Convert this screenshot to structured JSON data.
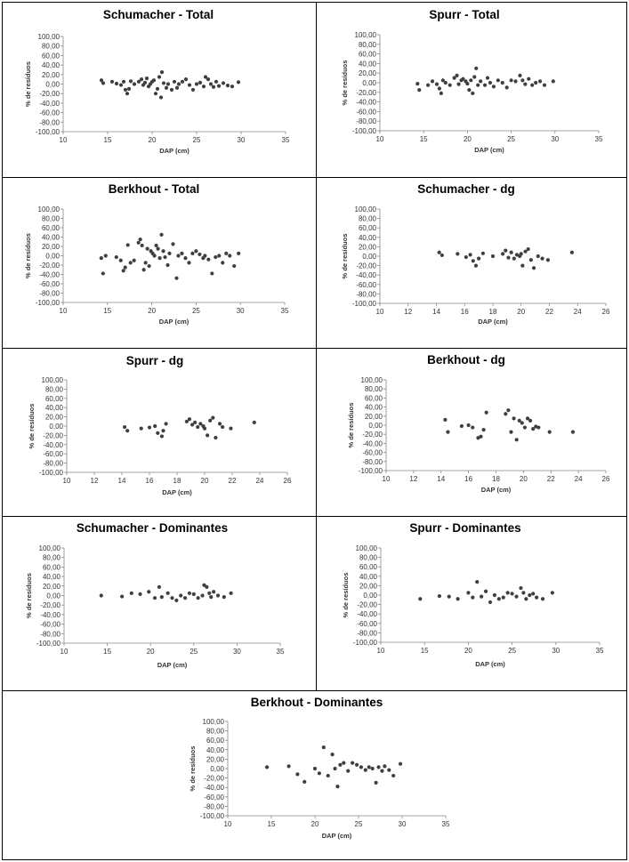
{
  "ylabel": "% de resíduos",
  "xlabel": "DAP (cm)",
  "y_ticks": [
    "100,00",
    "80,00",
    "60,00",
    "40,00",
    "20,00",
    "0,00",
    "-20,00",
    "-40,00",
    "-60,00",
    "-80,00",
    "-100,00"
  ],
  "chart_data": [
    {
      "type": "scatter",
      "title": "Schumacher - Total",
      "xlabel": "DAP (cm)",
      "ylabel": "% de resíduos",
      "xlim": [
        10,
        35
      ],
      "x_ticks": [
        10,
        15,
        20,
        25,
        30,
        35
      ],
      "ylim": [
        -100,
        100
      ],
      "points": [
        [
          14.3,
          8
        ],
        [
          14.5,
          2
        ],
        [
          15.5,
          5
        ],
        [
          16.0,
          1
        ],
        [
          16.5,
          -2
        ],
        [
          16.8,
          5
        ],
        [
          17.0,
          -12
        ],
        [
          17.2,
          -20
        ],
        [
          17.4,
          -10
        ],
        [
          17.6,
          6
        ],
        [
          18.0,
          0
        ],
        [
          18.5,
          5
        ],
        [
          18.8,
          10
        ],
        [
          19.0,
          -2
        ],
        [
          19.2,
          3
        ],
        [
          19.4,
          12
        ],
        [
          19.6,
          -5
        ],
        [
          19.8,
          0
        ],
        [
          20.0,
          5
        ],
        [
          20.2,
          8
        ],
        [
          20.4,
          -20
        ],
        [
          20.6,
          -10
        ],
        [
          20.8,
          15
        ],
        [
          21.0,
          -28
        ],
        [
          21.1,
          25
        ],
        [
          21.3,
          2
        ],
        [
          21.6,
          -8
        ],
        [
          21.8,
          0
        ],
        [
          22.2,
          -12
        ],
        [
          22.5,
          5
        ],
        [
          22.8,
          -8
        ],
        [
          23.0,
          0
        ],
        [
          23.4,
          5
        ],
        [
          23.8,
          10
        ],
        [
          24.2,
          -2
        ],
        [
          24.6,
          -12
        ],
        [
          25.0,
          0
        ],
        [
          25.4,
          3
        ],
        [
          25.8,
          -5
        ],
        [
          26.0,
          15
        ],
        [
          26.3,
          10
        ],
        [
          26.6,
          0
        ],
        [
          26.9,
          -6
        ],
        [
          27.2,
          5
        ],
        [
          27.5,
          -4
        ],
        [
          28.0,
          2
        ],
        [
          28.5,
          -3
        ],
        [
          29.0,
          -5
        ],
        [
          29.7,
          4
        ]
      ]
    },
    {
      "type": "scatter",
      "title": "Spurr - Total",
      "xlabel": "DAP (cm)",
      "ylabel": "% de resíduos",
      "xlim": [
        10,
        35
      ],
      "x_ticks": [
        10,
        15,
        20,
        25,
        30,
        35
      ],
      "ylim": [
        -100,
        100
      ],
      "points": [
        [
          14.3,
          -2
        ],
        [
          14.5,
          -15
        ],
        [
          15.5,
          -5
        ],
        [
          16.0,
          3
        ],
        [
          16.5,
          -3
        ],
        [
          16.8,
          -12
        ],
        [
          17.0,
          -22
        ],
        [
          17.2,
          5
        ],
        [
          17.5,
          0
        ],
        [
          18.0,
          -5
        ],
        [
          18.5,
          10
        ],
        [
          18.8,
          15
        ],
        [
          19.0,
          -3
        ],
        [
          19.3,
          5
        ],
        [
          19.5,
          8
        ],
        [
          19.8,
          3
        ],
        [
          20.0,
          -2
        ],
        [
          20.2,
          -15
        ],
        [
          20.4,
          5
        ],
        [
          20.6,
          -22
        ],
        [
          20.8,
          12
        ],
        [
          21.0,
          30
        ],
        [
          21.2,
          -5
        ],
        [
          21.5,
          3
        ],
        [
          22.0,
          -5
        ],
        [
          22.3,
          10
        ],
        [
          22.6,
          0
        ],
        [
          23.0,
          -8
        ],
        [
          23.5,
          5
        ],
        [
          24.0,
          0
        ],
        [
          24.5,
          -10
        ],
        [
          25.0,
          5
        ],
        [
          25.5,
          3
        ],
        [
          26.0,
          15
        ],
        [
          26.3,
          5
        ],
        [
          26.6,
          -3
        ],
        [
          27.0,
          8
        ],
        [
          27.4,
          -5
        ],
        [
          27.8,
          0
        ],
        [
          28.3,
          3
        ],
        [
          28.8,
          -5
        ],
        [
          29.8,
          3
        ]
      ]
    },
    {
      "type": "scatter",
      "title": "Berkhout - Total",
      "xlabel": "DAP (cm)",
      "ylabel": "% de resíduos",
      "xlim": [
        10,
        35
      ],
      "x_ticks": [
        10,
        15,
        20,
        25,
        30,
        35
      ],
      "ylim": [
        -100,
        100
      ],
      "points": [
        [
          14.3,
          -5
        ],
        [
          14.5,
          -38
        ],
        [
          14.8,
          0
        ],
        [
          16.0,
          -3
        ],
        [
          16.5,
          -10
        ],
        [
          16.8,
          -32
        ],
        [
          17.0,
          -25
        ],
        [
          17.3,
          23
        ],
        [
          17.6,
          -15
        ],
        [
          18.0,
          -10
        ],
        [
          18.5,
          28
        ],
        [
          18.7,
          35
        ],
        [
          18.9,
          22
        ],
        [
          19.1,
          -30
        ],
        [
          19.3,
          -15
        ],
        [
          19.5,
          15
        ],
        [
          19.7,
          -22
        ],
        [
          19.9,
          10
        ],
        [
          20.1,
          5
        ],
        [
          20.3,
          0
        ],
        [
          20.5,
          22
        ],
        [
          20.7,
          15
        ],
        [
          20.9,
          -5
        ],
        [
          21.1,
          45
        ],
        [
          21.3,
          10
        ],
        [
          21.5,
          -3
        ],
        [
          21.8,
          -20
        ],
        [
          22.0,
          5
        ],
        [
          22.4,
          25
        ],
        [
          22.8,
          -48
        ],
        [
          23.0,
          0
        ],
        [
          23.4,
          5
        ],
        [
          23.8,
          -5
        ],
        [
          24.2,
          -15
        ],
        [
          24.6,
          5
        ],
        [
          25.0,
          10
        ],
        [
          25.4,
          3
        ],
        [
          25.8,
          -5
        ],
        [
          26.0,
          0
        ],
        [
          26.4,
          -8
        ],
        [
          26.8,
          -38
        ],
        [
          27.2,
          -3
        ],
        [
          27.6,
          0
        ],
        [
          28.0,
          -15
        ],
        [
          28.4,
          5
        ],
        [
          28.8,
          0
        ],
        [
          29.3,
          -22
        ],
        [
          29.8,
          5
        ]
      ]
    },
    {
      "type": "scatter",
      "title": "Schumacher - dg",
      "xlabel": "DAP (cm)",
      "ylabel": "% de resíduos",
      "xlim": [
        10,
        26
      ],
      "x_ticks": [
        10,
        12,
        14,
        16,
        18,
        20,
        22,
        24,
        26
      ],
      "ylim": [
        -100,
        100
      ],
      "points": [
        [
          14.2,
          8
        ],
        [
          14.4,
          2
        ],
        [
          15.5,
          5
        ],
        [
          16.1,
          -2
        ],
        [
          16.4,
          3
        ],
        [
          16.6,
          -10
        ],
        [
          16.8,
          -20
        ],
        [
          17.0,
          -5
        ],
        [
          17.3,
          6
        ],
        [
          18.0,
          0
        ],
        [
          18.7,
          5
        ],
        [
          18.9,
          12
        ],
        [
          19.1,
          -3
        ],
        [
          19.3,
          8
        ],
        [
          19.5,
          -5
        ],
        [
          19.7,
          3
        ],
        [
          19.9,
          0
        ],
        [
          20.0,
          5
        ],
        [
          20.1,
          -20
        ],
        [
          20.3,
          10
        ],
        [
          20.5,
          15
        ],
        [
          20.7,
          -8
        ],
        [
          20.9,
          -25
        ],
        [
          21.2,
          0
        ],
        [
          21.5,
          -5
        ],
        [
          21.9,
          -8
        ],
        [
          23.6,
          8
        ]
      ]
    },
    {
      "type": "scatter",
      "title": "Spurr - dg",
      "xlabel": "DAP (cm)",
      "ylabel": "% de resíduos",
      "xlim": [
        10,
        26
      ],
      "x_ticks": [
        10,
        12,
        14,
        16,
        18,
        20,
        22,
        24,
        26
      ],
      "ylim": [
        -100,
        100
      ],
      "points": [
        [
          14.2,
          -2
        ],
        [
          14.4,
          -10
        ],
        [
          15.4,
          -5
        ],
        [
          16.0,
          -3
        ],
        [
          16.4,
          0
        ],
        [
          16.6,
          -15
        ],
        [
          16.9,
          -22
        ],
        [
          17.0,
          -10
        ],
        [
          17.2,
          5
        ],
        [
          18.7,
          10
        ],
        [
          18.9,
          15
        ],
        [
          19.1,
          3
        ],
        [
          19.3,
          8
        ],
        [
          19.5,
          -2
        ],
        [
          19.7,
          5
        ],
        [
          19.9,
          0
        ],
        [
          20.0,
          -5
        ],
        [
          20.2,
          -20
        ],
        [
          20.4,
          12
        ],
        [
          20.6,
          18
        ],
        [
          20.8,
          -25
        ],
        [
          21.1,
          5
        ],
        [
          21.3,
          -2
        ],
        [
          21.9,
          -5
        ],
        [
          23.6,
          8
        ]
      ]
    },
    {
      "type": "scatter",
      "title": "Berkhout - dg",
      "xlabel": "DAP (cm)",
      "ylabel": "% de resíduos",
      "xlim": [
        10,
        26
      ],
      "x_ticks": [
        10,
        12,
        14,
        16,
        18,
        20,
        22,
        24,
        26
      ],
      "ylim": [
        -100,
        100
      ],
      "points": [
        [
          14.3,
          12
        ],
        [
          14.5,
          -15
        ],
        [
          15.5,
          -2
        ],
        [
          16.0,
          0
        ],
        [
          16.3,
          -5
        ],
        [
          16.7,
          -28
        ],
        [
          16.9,
          -25
        ],
        [
          17.1,
          -10
        ],
        [
          17.3,
          28
        ],
        [
          18.7,
          25
        ],
        [
          18.9,
          33
        ],
        [
          19.1,
          -15
        ],
        [
          19.3,
          15
        ],
        [
          19.5,
          -32
        ],
        [
          19.7,
          10
        ],
        [
          19.9,
          5
        ],
        [
          20.1,
          -5
        ],
        [
          20.3,
          15
        ],
        [
          20.5,
          10
        ],
        [
          20.7,
          -8
        ],
        [
          20.9,
          -3
        ],
        [
          21.1,
          -5
        ],
        [
          21.9,
          -15
        ],
        [
          23.6,
          -15
        ]
      ]
    },
    {
      "type": "scatter",
      "title": "Schumacher - Dominantes",
      "xlabel": "DAP (cm)",
      "ylabel": "% de resíduos",
      "xlim": [
        10,
        35
      ],
      "x_ticks": [
        10,
        15,
        20,
        25,
        30,
        35
      ],
      "ylim": [
        -100,
        100
      ],
      "points": [
        [
          14.3,
          0
        ],
        [
          16.7,
          -2
        ],
        [
          17.8,
          5
        ],
        [
          18.8,
          3
        ],
        [
          19.8,
          8
        ],
        [
          20.5,
          -5
        ],
        [
          21.0,
          18
        ],
        [
          21.3,
          -3
        ],
        [
          22.0,
          5
        ],
        [
          22.5,
          -5
        ],
        [
          23.0,
          -10
        ],
        [
          23.5,
          0
        ],
        [
          24.0,
          -5
        ],
        [
          24.5,
          5
        ],
        [
          25.0,
          3
        ],
        [
          25.5,
          -5
        ],
        [
          26.0,
          0
        ],
        [
          26.2,
          22
        ],
        [
          26.5,
          18
        ],
        [
          26.8,
          5
        ],
        [
          27.0,
          -3
        ],
        [
          27.3,
          8
        ],
        [
          27.8,
          0
        ],
        [
          28.5,
          -3
        ],
        [
          29.3,
          5
        ]
      ]
    },
    {
      "type": "scatter",
      "title": "Spurr - Dominantes",
      "xlabel": "DAP (cm)",
      "ylabel": "% de resíduos",
      "xlim": [
        10,
        35
      ],
      "x_ticks": [
        10,
        15,
        20,
        25,
        30,
        35
      ],
      "ylim": [
        -100,
        100
      ],
      "points": [
        [
          14.5,
          -8
        ],
        [
          16.7,
          -2
        ],
        [
          17.8,
          -3
        ],
        [
          18.8,
          -8
        ],
        [
          20.0,
          5
        ],
        [
          20.5,
          -5
        ],
        [
          21.0,
          28
        ],
        [
          21.5,
          -3
        ],
        [
          22.0,
          8
        ],
        [
          22.5,
          -15
        ],
        [
          23.0,
          0
        ],
        [
          23.5,
          -8
        ],
        [
          24.0,
          -5
        ],
        [
          24.5,
          5
        ],
        [
          25.0,
          3
        ],
        [
          25.5,
          -3
        ],
        [
          26.0,
          15
        ],
        [
          26.3,
          5
        ],
        [
          26.6,
          -8
        ],
        [
          27.0,
          0
        ],
        [
          27.4,
          3
        ],
        [
          27.8,
          -5
        ],
        [
          28.5,
          -8
        ],
        [
          29.6,
          5
        ]
      ]
    },
    {
      "type": "scatter",
      "title": "Berkhout - Dominantes",
      "xlabel": "DAP (cm)",
      "ylabel": "% de resíduos",
      "xlim": [
        10,
        35
      ],
      "x_ticks": [
        10,
        15,
        20,
        25,
        30,
        35
      ],
      "ylim": [
        -100,
        100
      ],
      "points": [
        [
          14.5,
          3
        ],
        [
          17.0,
          5
        ],
        [
          18.0,
          -12
        ],
        [
          18.8,
          -28
        ],
        [
          20.0,
          0
        ],
        [
          20.5,
          -10
        ],
        [
          21.0,
          45
        ],
        [
          21.5,
          -15
        ],
        [
          22.0,
          30
        ],
        [
          22.3,
          0
        ],
        [
          22.6,
          -38
        ],
        [
          22.9,
          8
        ],
        [
          23.3,
          12
        ],
        [
          23.8,
          -5
        ],
        [
          24.3,
          12
        ],
        [
          24.8,
          8
        ],
        [
          25.3,
          3
        ],
        [
          25.8,
          -3
        ],
        [
          26.2,
          3
        ],
        [
          26.6,
          0
        ],
        [
          27.0,
          -30
        ],
        [
          27.3,
          3
        ],
        [
          27.7,
          -5
        ],
        [
          28.0,
          5
        ],
        [
          28.5,
          -3
        ],
        [
          29.0,
          -15
        ],
        [
          29.8,
          10
        ]
      ]
    }
  ]
}
